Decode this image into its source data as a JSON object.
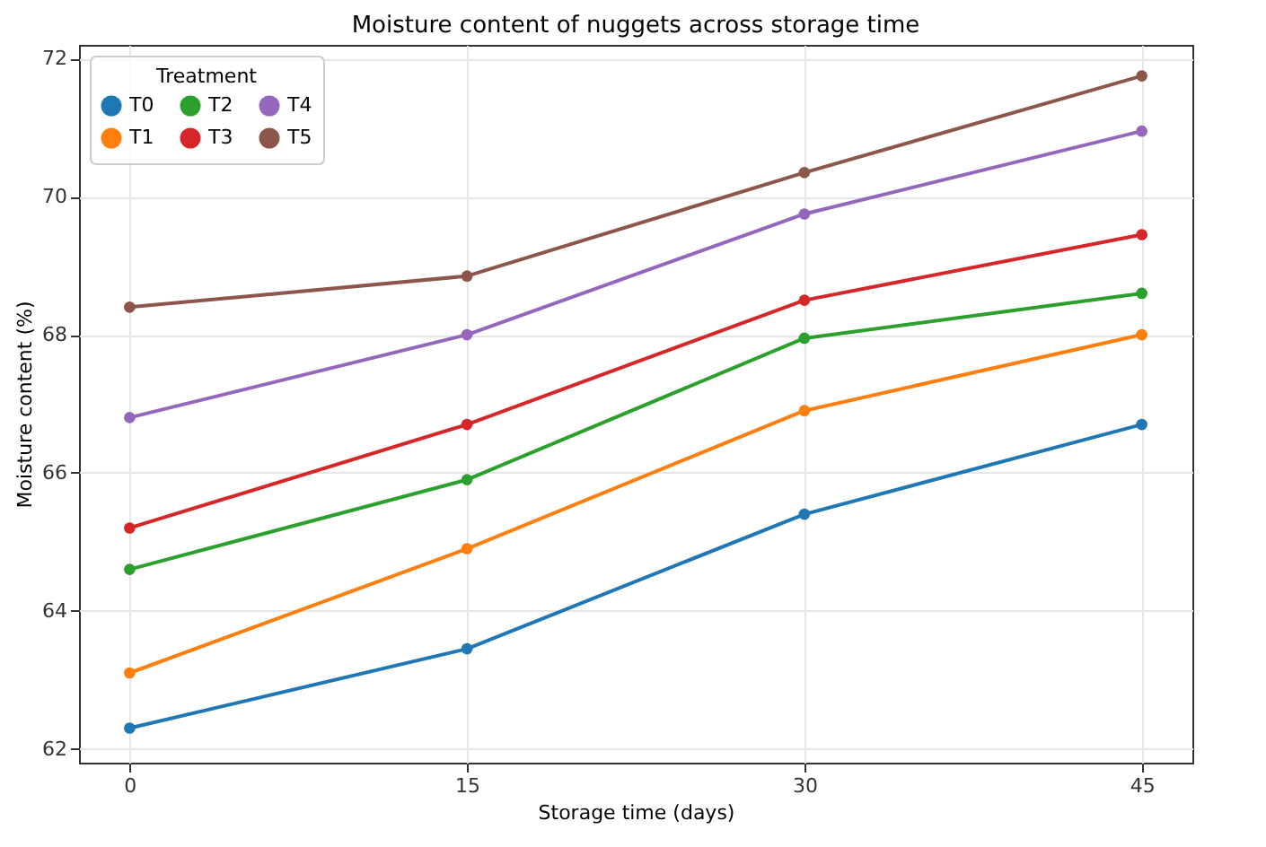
{
  "chart_data": {
    "type": "line",
    "title": "Moisture content of nuggets across storage time",
    "xlabel": "Storage time (days)",
    "ylabel": "Moisture content (%)",
    "legend_title": "Treatment",
    "x": [
      0,
      15,
      30,
      45
    ],
    "series": [
      {
        "name": "T0",
        "color": "#1f77b4",
        "values": [
          62.3,
          63.45,
          65.4,
          66.7
        ]
      },
      {
        "name": "T1",
        "color": "#ff7f0e",
        "values": [
          63.1,
          64.9,
          66.9,
          68.0
        ]
      },
      {
        "name": "T2",
        "color": "#2ca02c",
        "values": [
          64.6,
          65.9,
          67.95,
          68.6
        ]
      },
      {
        "name": "T3",
        "color": "#d62728",
        "values": [
          65.2,
          66.7,
          68.5,
          69.45
        ]
      },
      {
        "name": "T4",
        "color": "#9467bd",
        "values": [
          66.8,
          68.0,
          69.75,
          70.95
        ]
      },
      {
        "name": "T5",
        "color": "#8c564b",
        "values": [
          68.4,
          68.85,
          70.35,
          71.75
        ]
      }
    ],
    "xlim": [
      -2.25,
      47.25
    ],
    "ylim": [
      61.8,
      72.2
    ],
    "xticks": [
      0,
      15,
      30,
      45
    ],
    "yticks": [
      62,
      64,
      66,
      68,
      70,
      72
    ],
    "grid": true,
    "legend": "top left",
    "marker": "circle",
    "line_style": "solid"
  }
}
